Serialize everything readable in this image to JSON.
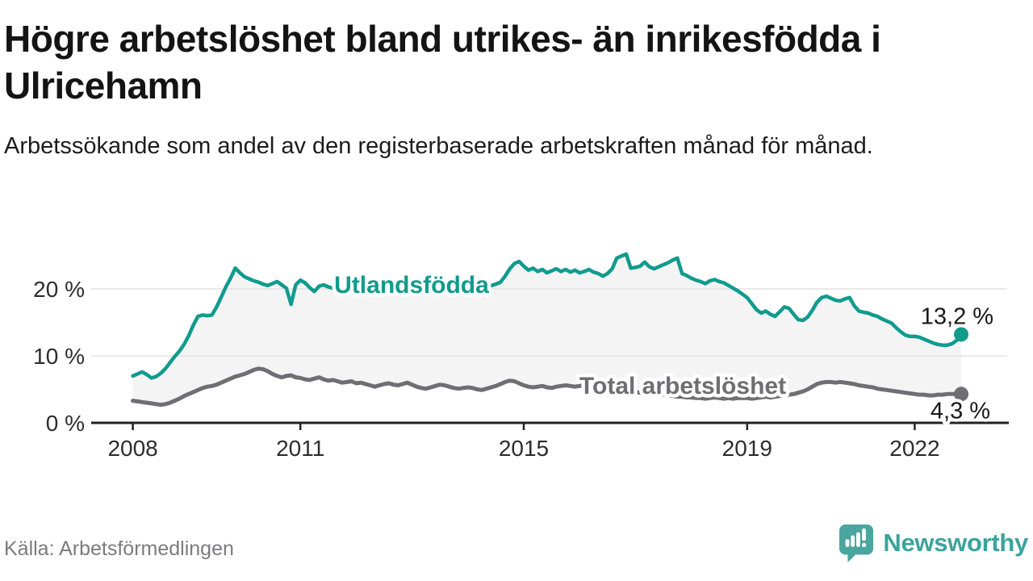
{
  "header": {
    "title": "Högre arbetslöshet bland utrikes- än inrikesfödda i Ulricehamn",
    "subtitle": "Arbetssökande som andel av den registerbaserade arbetskraften månad för månad."
  },
  "footer": {
    "source": "Källa: Arbetsförmedlingen",
    "brand": "Newsworthy"
  },
  "colors": {
    "accent_teal": "#109b8d",
    "accent_gray": "#6e6e73",
    "fill_between": "#f4f4f5",
    "gridline": "#e2e2e2",
    "axis": "#222222",
    "logo_teal": "#4aa69f"
  },
  "chart_data": {
    "type": "line",
    "unit": "%",
    "frequency": "monthly",
    "x_start": {
      "year": 2008,
      "month": 1
    },
    "x_end": {
      "year": 2022,
      "month": 11
    },
    "x_ticks": [
      2008,
      2011,
      2015,
      2019,
      2022
    ],
    "y_ticks": [
      0,
      10,
      20
    ],
    "y_tick_suffix": " %",
    "ylim": [
      0,
      26
    ],
    "grid": true,
    "legend_position": "inline-labels",
    "fill_between": "#f4f4f5",
    "series": [
      {
        "name": "Utlandsfödda",
        "color": "#109b8d",
        "end_label": "13,2 %",
        "end_value": 13.2,
        "values": [
          7.0,
          7.3,
          7.6,
          7.2,
          6.7,
          6.9,
          7.4,
          8.1,
          9.0,
          9.9,
          10.7,
          11.7,
          13.0,
          14.6,
          15.9,
          16.1,
          16.0,
          16.1,
          17.3,
          18.8,
          20.3,
          21.6,
          23.1,
          22.4,
          21.8,
          21.5,
          21.2,
          21.0,
          20.7,
          20.5,
          20.8,
          21.1,
          20.6,
          20.1,
          17.7,
          20.6,
          21.3,
          20.9,
          20.2,
          19.6,
          20.4,
          20.6,
          20.3,
          20.1,
          20.4,
          20.2,
          20.0,
          20.3,
          20.5,
          20.2,
          20.0,
          20.3,
          20.1,
          19.9,
          20.2,
          20.4,
          20.1,
          19.9,
          20.2,
          20.0,
          20.3,
          20.1,
          19.9,
          20.2,
          20.0,
          20.2,
          20.4,
          20.1,
          20.3,
          20.0,
          20.2,
          20.4,
          20.3,
          20.5,
          20.2,
          20.4,
          20.6,
          20.5,
          20.7,
          21.0,
          21.9,
          23.0,
          23.8,
          24.1,
          23.4,
          22.8,
          23.1,
          22.6,
          22.9,
          22.4,
          22.7,
          23.0,
          22.6,
          22.9,
          22.5,
          22.8,
          22.4,
          22.6,
          22.9,
          22.5,
          22.3,
          21.9,
          22.3,
          23.0,
          24.6,
          24.9,
          25.2,
          23.1,
          23.2,
          23.4,
          24.0,
          23.3,
          23.0,
          23.3,
          23.6,
          23.9,
          24.3,
          24.6,
          22.3,
          22.0,
          21.6,
          21.3,
          21.1,
          20.8,
          21.2,
          21.4,
          21.1,
          20.9,
          20.5,
          20.1,
          19.7,
          19.2,
          18.7,
          17.8,
          16.9,
          16.4,
          16.7,
          16.2,
          15.9,
          16.6,
          17.3,
          17.1,
          16.2,
          15.4,
          15.3,
          15.8,
          16.8,
          18.0,
          18.7,
          18.9,
          18.6,
          18.3,
          18.2,
          18.5,
          18.7,
          17.5,
          16.7,
          16.5,
          16.4,
          16.1,
          15.9,
          15.5,
          15.2,
          14.9,
          14.2,
          13.6,
          13.1,
          12.9,
          12.9,
          12.8,
          12.5,
          12.2,
          11.9,
          11.7,
          11.6,
          11.6,
          11.8,
          12.3,
          13.2
        ]
      },
      {
        "name": "Total arbetslöshet",
        "color": "#6e6e73",
        "end_label": "4,3 %",
        "end_value": 4.3,
        "values": [
          3.3,
          3.2,
          3.1,
          3.0,
          2.9,
          2.8,
          2.7,
          2.8,
          3.0,
          3.3,
          3.6,
          4.0,
          4.3,
          4.6,
          4.9,
          5.2,
          5.4,
          5.5,
          5.7,
          6.0,
          6.3,
          6.6,
          6.9,
          7.1,
          7.3,
          7.6,
          7.9,
          8.1,
          8.0,
          7.7,
          7.3,
          7.0,
          6.8,
          7.0,
          7.1,
          6.8,
          6.7,
          6.5,
          6.4,
          6.6,
          6.8,
          6.5,
          6.3,
          6.4,
          6.2,
          6.0,
          6.1,
          6.2,
          5.9,
          6.0,
          5.8,
          5.6,
          5.4,
          5.6,
          5.8,
          5.9,
          5.7,
          5.6,
          5.8,
          6.0,
          5.7,
          5.4,
          5.2,
          5.1,
          5.3,
          5.5,
          5.7,
          5.6,
          5.4,
          5.2,
          5.1,
          5.2,
          5.3,
          5.2,
          5.0,
          4.9,
          5.1,
          5.3,
          5.5,
          5.8,
          6.1,
          6.3,
          6.2,
          5.9,
          5.6,
          5.4,
          5.3,
          5.4,
          5.5,
          5.3,
          5.2,
          5.4,
          5.5,
          5.6,
          5.5,
          5.4,
          5.5,
          5.6,
          5.4,
          5.3,
          5.2,
          5.0,
          4.9,
          5.0,
          5.1,
          5.0,
          4.8,
          4.7,
          4.6,
          4.5,
          4.4,
          4.3,
          4.4,
          4.3,
          4.2,
          4.1,
          4.0,
          3.9,
          3.9,
          3.8,
          3.8,
          3.7,
          3.7,
          3.6,
          3.7,
          3.8,
          3.7,
          3.6,
          3.7,
          3.6,
          3.7,
          3.7,
          3.7,
          3.6,
          3.7,
          3.8,
          3.9,
          3.8,
          3.9,
          4.0,
          4.1,
          4.2,
          4.3,
          4.5,
          4.7,
          5.0,
          5.4,
          5.8,
          6.0,
          6.1,
          6.1,
          6.0,
          6.1,
          6.0,
          5.9,
          5.8,
          5.6,
          5.5,
          5.4,
          5.3,
          5.1,
          5.0,
          4.9,
          4.8,
          4.7,
          4.6,
          4.5,
          4.4,
          4.3,
          4.2,
          4.2,
          4.1,
          4.1,
          4.2,
          4.2,
          4.3,
          4.3,
          4.3,
          4.3
        ]
      }
    ]
  }
}
